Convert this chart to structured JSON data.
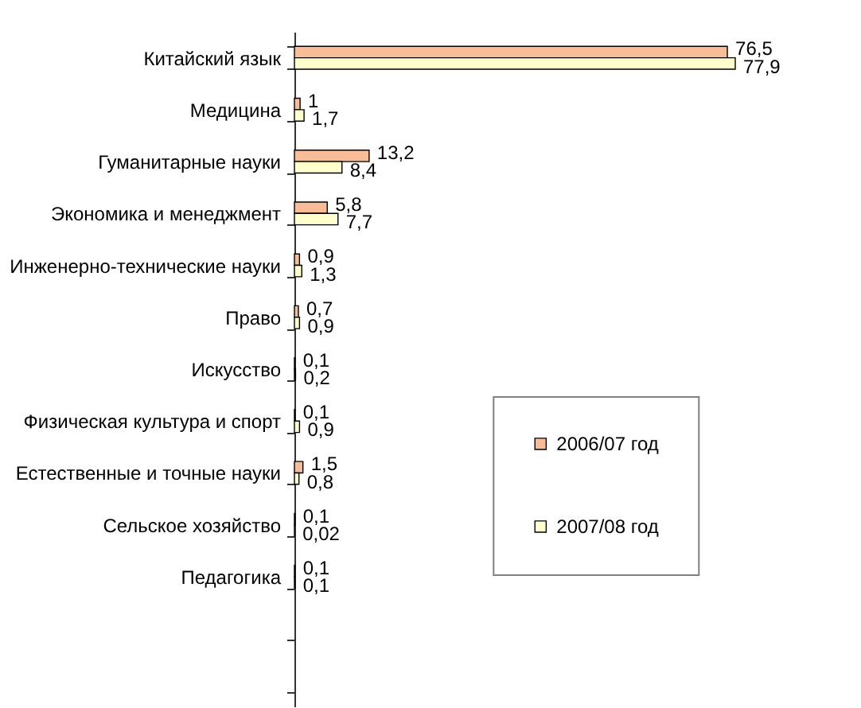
{
  "chart_data": {
    "type": "bar",
    "orientation": "horizontal",
    "categories": [
      "Китайский язык",
      "Медицина",
      "Гуманитарные науки",
      "Экономика и менеджмент",
      "Инженерно-технические науки",
      "Право",
      "Искусство",
      "Физическая культура и спорт",
      "Естественные и точные науки",
      "Сельское хозяйство",
      "Педагогика",
      null,
      null
    ],
    "series": [
      {
        "name": "2006/07 год",
        "color": "#f8bd96",
        "values": [
          76.5,
          1,
          13.2,
          5.8,
          0.9,
          0.7,
          0.1,
          0.1,
          1.5,
          0.1,
          0.1,
          null,
          null
        ],
        "value_labels": [
          "76,5",
          "1",
          "13,2",
          "5,8",
          "0,9",
          "0,7",
          "0,1",
          "0,1",
          "1,5",
          "0,1",
          "0,1",
          null,
          null
        ]
      },
      {
        "name": "2007/08 год",
        "color": "#ffffcc",
        "values": [
          77.9,
          1.7,
          8.4,
          7.7,
          1.3,
          0.9,
          0.2,
          0.9,
          0.8,
          0.02,
          0.1,
          null,
          null
        ],
        "value_labels": [
          "77,9",
          "1,7",
          "8,4",
          "7,7",
          "1,3",
          "0,9",
          "0,2",
          "0,9",
          "0,8",
          "0,02",
          "0,1",
          null,
          null
        ]
      }
    ],
    "legend": "right",
    "grid": false,
    "tick_labels": "y"
  }
}
